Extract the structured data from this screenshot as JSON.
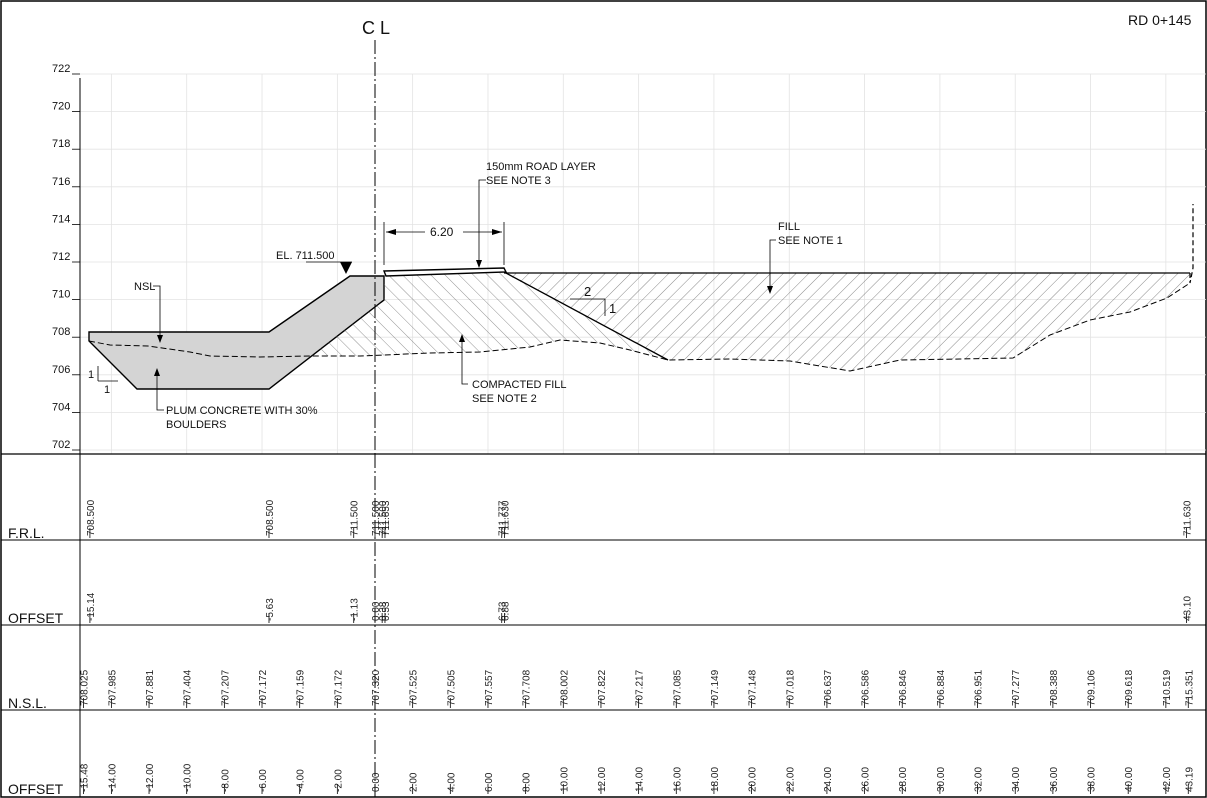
{
  "drawing": {
    "chainage": "RD 0+145",
    "centerline_label": "C L"
  },
  "elevation_axis": {
    "ticks": [
      "722",
      "720",
      "718",
      "716",
      "714",
      "712",
      "710",
      "708",
      "706",
      "704",
      "702"
    ]
  },
  "annotations": {
    "road_layer_line1": "150mm ROAD LAYER",
    "road_layer_line2": "SEE NOTE 3",
    "width_dim": "6.20",
    "fill_line1": "FILL",
    "fill_line2": "SEE NOTE 1",
    "elevation": "EL. 711.500",
    "nsl": "NSL",
    "slope_run": "2",
    "slope_rise": "1",
    "compacted_line1": "COMPACTED FILL",
    "compacted_line2": "SEE NOTE 2",
    "plum_line1": "PLUM CONCRETE WITH 30%",
    "plum_line2": "BOULDERS",
    "left_slope_rise": "1",
    "left_slope_run": "1"
  },
  "table": {
    "frl_label": "F.R.L.",
    "offset1_label": "OFFSET",
    "nsl_label": "N.S.L.",
    "offset2_label": "OFFSET",
    "frl_values": [
      "708.500",
      "708.500",
      "711.500",
      "711.500",
      "711.500",
      "711.653",
      "711.777",
      "711.630",
      "711.630"
    ],
    "design_offsets": [
      "-15.14",
      "-5.63",
      "-1.13",
      "0.00",
      "0.38",
      "0.53",
      "6.73",
      "6.88",
      "43.10"
    ],
    "nsl_values": [
      "708.025",
      "707.985",
      "707.881",
      "707.404",
      "707.207",
      "707.172",
      "707.159",
      "707.172",
      "707.320",
      "707.525",
      "707.505",
      "707.557",
      "707.708",
      "708.002",
      "707.822",
      "707.217",
      "707.085",
      "707.149",
      "707.148",
      "707.018",
      "706.637",
      "706.586",
      "706.846",
      "706.884",
      "706.951",
      "707.277",
      "708.388",
      "709.106",
      "709.618",
      "710.519",
      "715.351"
    ],
    "ground_offsets": [
      "-15.48",
      "-14.00",
      "-12.00",
      "-10.00",
      "-8.00",
      "-6.00",
      "-4.00",
      "-2.00",
      "0.00",
      "2.00",
      "4.00",
      "6.00",
      "8.00",
      "10.00",
      "12.00",
      "14.00",
      "16.00",
      "18.00",
      "20.00",
      "22.00",
      "24.00",
      "26.00",
      "28.00",
      "30.00",
      "32.00",
      "34.00",
      "36.00",
      "38.00",
      "40.00",
      "42.00",
      "43.19"
    ]
  }
}
